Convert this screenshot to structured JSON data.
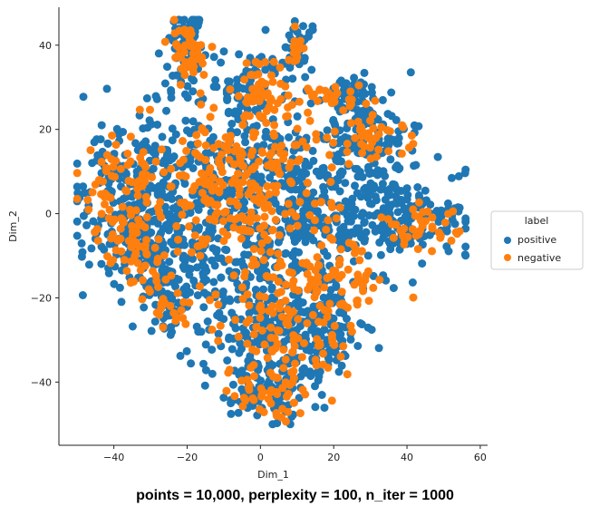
{
  "caption": "points = 10,000, perplexity = 100, n_iter = 1000",
  "colors": {
    "positive": "#1f77b4",
    "negative": "#ff7f0e",
    "axis": "#222222"
  },
  "chart_data": {
    "type": "scatter",
    "title": "",
    "xlabel": "Dim_1",
    "ylabel": "Dim_2",
    "xlim": [
      -55,
      62
    ],
    "ylim": [
      -55,
      49
    ],
    "xticks": [
      -40,
      -20,
      0,
      20,
      40,
      60
    ],
    "xtick_labels": [
      "−40",
      "−20",
      "0",
      "20",
      "40",
      "60"
    ],
    "yticks": [
      -40,
      -20,
      0,
      20,
      40
    ],
    "ytick_labels": [
      "−40",
      "−20",
      "0",
      "20",
      "40"
    ],
    "grid": false,
    "legend": {
      "title": "label",
      "placement": "outside-right",
      "entries": [
        "positive",
        "negative"
      ]
    },
    "series": [
      {
        "name": "positive",
        "color": "#1f77b4",
        "clusters": [
          {
            "cx": -5,
            "cy": 2,
            "sx": 15,
            "sy": 14,
            "n": 600
          },
          {
            "cx": -35,
            "cy": 5,
            "sx": 8,
            "sy": 8,
            "n": 200
          },
          {
            "cx": -30,
            "cy": -8,
            "sx": 6,
            "sy": 6,
            "n": 120
          },
          {
            "cx": -20,
            "cy": 38,
            "sx": 2.5,
            "sy": 5,
            "n": 70
          },
          {
            "cx": 10,
            "cy": 39,
            "sx": 1.5,
            "sy": 3,
            "n": 40
          },
          {
            "cx": 25,
            "cy": 28,
            "sx": 4,
            "sy": 3,
            "n": 60
          },
          {
            "cx": 40,
            "cy": -1,
            "sx": 8,
            "sy": 5,
            "n": 130
          },
          {
            "cx": 25,
            "cy": 5,
            "sx": 10,
            "sy": 10,
            "n": 180
          },
          {
            "cx": 5,
            "cy": -25,
            "sx": 12,
            "sy": 8,
            "n": 220
          },
          {
            "cx": 3,
            "cy": -42,
            "sx": 6,
            "sy": 4,
            "n": 90
          },
          {
            "cx": -25,
            "cy": -23,
            "sx": 2.5,
            "sy": 3,
            "n": 40
          },
          {
            "cx": 18,
            "cy": -30,
            "sx": 4,
            "sy": 4,
            "n": 60
          },
          {
            "cx": 30,
            "cy": 18,
            "sx": 6,
            "sy": 3,
            "n": 60
          },
          {
            "cx": -5,
            "cy": 30,
            "sx": 5,
            "sy": 4,
            "n": 60
          }
        ]
      },
      {
        "name": "negative",
        "color": "#ff7f0e",
        "clusters": [
          {
            "cx": -5,
            "cy": 5,
            "sx": 12,
            "sy": 12,
            "n": 300
          },
          {
            "cx": -38,
            "cy": 8,
            "sx": 6,
            "sy": 4,
            "n": 60
          },
          {
            "cx": -35,
            "cy": -5,
            "sx": 5,
            "sy": 4,
            "n": 50
          },
          {
            "cx": -20,
            "cy": 38,
            "sx": 2.5,
            "sy": 4,
            "n": 45
          },
          {
            "cx": 10,
            "cy": 38,
            "sx": 1.2,
            "sy": 2,
            "n": 12
          },
          {
            "cx": 0,
            "cy": 30,
            "sx": 3,
            "sy": 3,
            "n": 40
          },
          {
            "cx": 20,
            "cy": 28,
            "sx": 3,
            "sy": 2,
            "n": 25
          },
          {
            "cx": 30,
            "cy": 18,
            "sx": 5,
            "sy": 3,
            "n": 45
          },
          {
            "cx": 45,
            "cy": -3,
            "sx": 5,
            "sy": 3,
            "n": 40
          },
          {
            "cx": 20,
            "cy": -15,
            "sx": 7,
            "sy": 6,
            "n": 80
          },
          {
            "cx": 5,
            "cy": -30,
            "sx": 7,
            "sy": 7,
            "n": 80
          },
          {
            "cx": 3,
            "cy": -43,
            "sx": 5,
            "sy": 3,
            "n": 35
          },
          {
            "cx": -25,
            "cy": -23,
            "sx": 2,
            "sy": 2,
            "n": 15
          },
          {
            "cx": 18,
            "cy": -32,
            "sx": 2,
            "sy": 2,
            "n": 12
          },
          {
            "cx": -30,
            "cy": -15,
            "sx": 3,
            "sy": 3,
            "n": 15
          }
        ]
      }
    ]
  }
}
